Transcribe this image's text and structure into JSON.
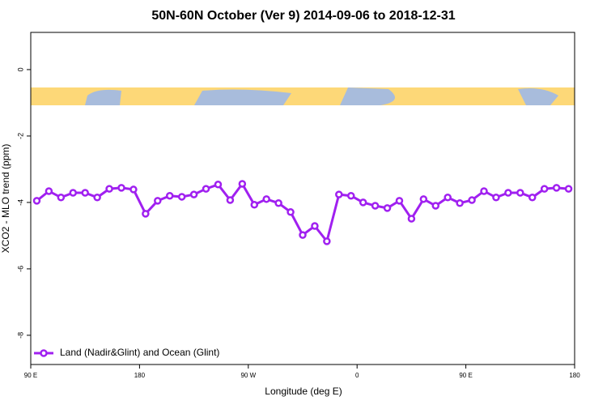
{
  "chart_data": {
    "type": "line",
    "title": "50N-60N October (Ver 9)   2014-09-06 to 2018-12-31",
    "xlabel": "Longitude (deg E)",
    "ylabel": "XCO2 - MLO trend (ppm)",
    "x": [
      95,
      105,
      115,
      125,
      135,
      145,
      155,
      165,
      175,
      185,
      195,
      205,
      215,
      225,
      235,
      245,
      255,
      265,
      275,
      285,
      295,
      305,
      315,
      325,
      335,
      345,
      355,
      365,
      375,
      385,
      395,
      405,
      415,
      425,
      435,
      445,
      455,
      465,
      475,
      485,
      495,
      505,
      515,
      525,
      535
    ],
    "series": [
      {
        "name": "Land (Nadir&Glint) and Ocean (Glint)",
        "color": "#a020f0",
        "values": [
          -3.95,
          -3.66,
          -3.85,
          -3.71,
          -3.71,
          -3.85,
          -3.59,
          -3.56,
          -3.61,
          -4.34,
          -3.95,
          -3.8,
          -3.83,
          -3.76,
          -3.59,
          -3.46,
          -3.93,
          -3.44,
          -4.07,
          -3.9,
          -4.02,
          -4.29,
          -4.98,
          -4.71,
          -5.17,
          -3.76,
          -3.8,
          -4.0,
          -4.1,
          -4.17,
          -3.95,
          -4.49,
          -3.9,
          -4.1,
          -3.85,
          -4.02,
          -3.93,
          -3.66,
          -3.85,
          -3.71,
          -3.71,
          -3.85,
          -3.59,
          -3.56,
          -3.59
        ]
      }
    ],
    "xlim": [
      90,
      540
    ],
    "xticks": [
      {
        "value": 90,
        "label": "90 E"
      },
      {
        "value": 180,
        "label": "180"
      },
      {
        "value": 270,
        "label": "90 W"
      },
      {
        "value": 360,
        "label": "0"
      },
      {
        "value": 450,
        "label": "90 E"
      },
      {
        "value": 540,
        "label": "180"
      }
    ],
    "ylim": [
      -8.88,
      1.12
    ],
    "yticks": [
      0,
      -2,
      -4,
      -6,
      -8
    ],
    "legend": "bottom-left"
  }
}
